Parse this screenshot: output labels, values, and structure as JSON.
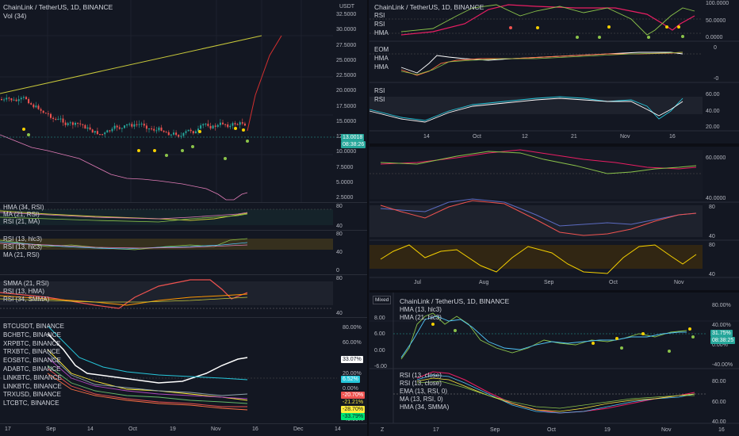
{
  "left": {
    "main_title": "ChainLink / TetherUS, 1D, BINANCE",
    "vol_label": "Vol (34)",
    "currency": "USDT",
    "price_axis": [
      "32.5000",
      "30.0000",
      "27.5000",
      "25.0000",
      "22.5000",
      "20.0000",
      "17.5000",
      "15.0000",
      "12.5000",
      "10.0000",
      "7.5000",
      "5.0000",
      "2.5000"
    ],
    "last_price": "13.0018",
    "countdown": "08:38:26",
    "pane2_labels": [
      "HMA (34, RSI)",
      "MA (21, RSI)",
      "RSI (21, MA)"
    ],
    "pane2_axis": [
      "80",
      "40"
    ],
    "pane3_labels": [
      "RSI (13, hlc3)",
      "RSI (13, hlc3)",
      "MA (21, RSI)"
    ],
    "pane3_axis": [
      "80",
      "40",
      "0"
    ],
    "pane4_labels": [
      "SMMA (21, RSI)",
      "RSI (13, HMA)",
      "RSI (34, SMMA)"
    ],
    "pane4_axis": [
      "80",
      "40"
    ],
    "pane5_labels": [
      "BTCUSDT, BINANCE",
      "BCHBTC, BINANCE",
      "XRPBTC, BINANCE",
      "TRXBTC, BINANCE",
      "EOSBTC, BINANCE",
      "ADABTC, BINANCE",
      "LINKBTC, BINANCE",
      "LINKBTC, BINANCE",
      "TRXUSD, BINANCE",
      "LTCBTC, BINANCE"
    ],
    "pane5_axis": [
      "80.00%",
      "60.00%",
      "40.00%",
      "20.00%",
      "0.00%",
      "-20.00%",
      "-40.00%"
    ],
    "pane5_tags": [
      "33.07%",
      "6.52%",
      "-20.70%",
      "-21.21%",
      "-28.70%",
      "-33.79%"
    ],
    "time_axis": [
      "17",
      "Sep",
      "14",
      "Oct",
      "19",
      "Nov",
      "16",
      "Dec",
      "14"
    ]
  },
  "right_top": {
    "title": "ChainLink / TetherUS, 1D, BINANCE",
    "pane1_labels": [
      "RSI",
      "RSI",
      "HMA"
    ],
    "pane1_axis": [
      "100.0000",
      "50.0000",
      "0.0000"
    ],
    "pane2_labels": [
      "EOM",
      "HMA",
      "HMA"
    ],
    "pane2_axis": [
      "0",
      "-0"
    ],
    "pane3_labels": [
      "RSI",
      "RSI"
    ],
    "pane3_axis": [
      "60.00",
      "40.00",
      "20.00"
    ],
    "time_axis": [
      "14",
      "Oct",
      "12",
      "21",
      "Nov",
      "16"
    ]
  },
  "right_mid": {
    "pane1_axis": [
      "60.0000",
      "40.0000"
    ],
    "pane2_axis": [
      "80",
      "40"
    ],
    "pane3_axis": [
      "80",
      "40"
    ],
    "time_axis": [
      "Jul",
      "Aug",
      "Sep",
      "Oct",
      "Nov"
    ]
  },
  "right_bottom": {
    "mixed": "Mixed",
    "title": "ChainLink / TetherUS, 1D, BINANCE",
    "labels": [
      "HMA (13, hlc3)",
      "HMA (21, hlc3)"
    ],
    "left_axis": [
      "8.00",
      "6.00",
      "0.00",
      "-6.00"
    ],
    "right_axis": [
      "80.00%",
      "40.00%",
      "0.00%",
      "-40.00%"
    ],
    "tags": [
      "31.75%",
      "08:38:25"
    ],
    "pane2_labels": [
      "RSI (13, close)",
      "RSI (13, close)",
      "EMA (13, RSI, 0)",
      "MA (13, RSI, 0)",
      "HMA (34, SMMA)"
    ],
    "pane2_axis": [
      "80.00",
      "60.00",
      "40.00"
    ],
    "time_axis": [
      "17",
      "Sep",
      "Oct",
      "19",
      "Nov",
      "16"
    ],
    "corner": "Z"
  }
}
